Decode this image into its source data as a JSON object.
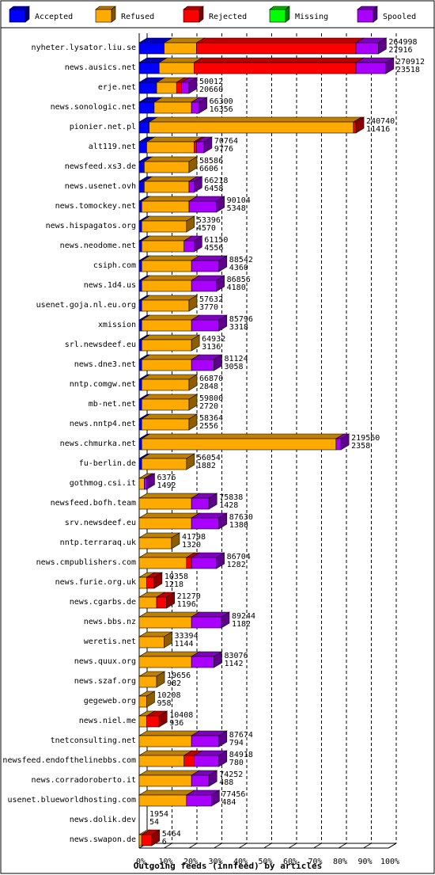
{
  "chart_data": {
    "type": "bar",
    "orientation": "horizontal",
    "stacked": true,
    "xlabel": "Outgoing feeds (innfeed) by articles",
    "xlim": [
      0,
      100
    ],
    "x_ticks": [
      "0%",
      "10%",
      "20%",
      "30%",
      "40%",
      "50%",
      "60%",
      "70%",
      "80%",
      "90%",
      "100%"
    ],
    "grid": true,
    "legend_position": "top",
    "legend": [
      {
        "name": "Accepted",
        "color": "#0000ff"
      },
      {
        "name": "Refused",
        "color": "#ffaa00"
      },
      {
        "name": "Rejected",
        "color": "#ff0000"
      },
      {
        "name": "Missing",
        "color": "#00ff00"
      },
      {
        "name": "Spooled",
        "color": "#aa00ff"
      }
    ],
    "categories": [
      {
        "name": "nyheter.lysator.liu.se",
        "total": "264998",
        "accepted": "27916",
        "pct": [
          10,
          13,
          64,
          0,
          9
        ]
      },
      {
        "name": "news.ausics.net",
        "total": "270912",
        "accepted": "23518",
        "pct": [
          8,
          14,
          65,
          0,
          12
        ]
      },
      {
        "name": "erje.net",
        "total": "50012",
        "accepted": "20660",
        "pct": [
          7,
          8,
          2,
          0,
          3
        ]
      },
      {
        "name": "news.sonologic.net",
        "total": "66300",
        "accepted": "16356",
        "pct": [
          6,
          15,
          0,
          0,
          3
        ]
      },
      {
        "name": "pionier.net.pl",
        "total": "240740",
        "accepted": "11416",
        "pct": [
          4,
          82,
          1,
          0,
          0
        ]
      },
      {
        "name": "alt119.net",
        "total": "70764",
        "accepted": "9776",
        "pct": [
          3,
          19,
          1,
          0,
          3
        ]
      },
      {
        "name": "newsfeed.xs3.de",
        "total": "58586",
        "accepted": "6606",
        "pct": [
          2,
          18,
          0,
          0,
          0
        ]
      },
      {
        "name": "news.usenet.ovh",
        "total": "66218",
        "accepted": "6458",
        "pct": [
          2,
          18,
          0,
          0,
          2
        ]
      },
      {
        "name": "news.tomockey.net",
        "total": "90104",
        "accepted": "5348",
        "pct": [
          1,
          19,
          0,
          0,
          11
        ]
      },
      {
        "name": "news.hispagatos.org",
        "total": "53396",
        "accepted": "4570",
        "pct": [
          1,
          18,
          0,
          0,
          0
        ]
      },
      {
        "name": "news.neodome.net",
        "total": "61150",
        "accepted": "4556",
        "pct": [
          1,
          17,
          0,
          0,
          4
        ]
      },
      {
        "name": "csiph.com",
        "total": "88542",
        "accepted": "4360",
        "pct": [
          1,
          20,
          0,
          0,
          11
        ]
      },
      {
        "name": "news.1d4.us",
        "total": "86856",
        "accepted": "4180",
        "pct": [
          1,
          20,
          0,
          0,
          10
        ]
      },
      {
        "name": "usenet.goja.nl.eu.org",
        "total": "57632",
        "accepted": "3770",
        "pct": [
          1,
          19,
          0,
          0,
          0
        ]
      },
      {
        "name": "xmission",
        "total": "85796",
        "accepted": "3318",
        "pct": [
          1,
          20,
          0,
          0,
          11
        ]
      },
      {
        "name": "srl.newsdeef.eu",
        "total": "64932",
        "accepted": "3136",
        "pct": [
          1,
          20,
          0,
          0,
          0
        ]
      },
      {
        "name": "news.dne3.net",
        "total": "81124",
        "accepted": "3058",
        "pct": [
          1,
          20,
          0,
          0,
          9
        ]
      },
      {
        "name": "nntp.comgw.net",
        "total": "66870",
        "accepted": "2848",
        "pct": [
          1,
          19,
          0,
          0,
          0
        ]
      },
      {
        "name": "mb-net.net",
        "total": "59800",
        "accepted": "2720",
        "pct": [
          1,
          19,
          0,
          0,
          0
        ]
      },
      {
        "name": "news.nntp4.net",
        "total": "58364",
        "accepted": "2556",
        "pct": [
          1,
          19,
          0,
          0,
          0
        ]
      },
      {
        "name": "news.chmurka.net",
        "total": "219560",
        "accepted": "2358",
        "pct": [
          1,
          78,
          0,
          0,
          2
        ]
      },
      {
        "name": "fu-berlin.de",
        "total": "56054",
        "accepted": "1882",
        "pct": [
          1,
          18,
          0,
          0,
          0
        ]
      },
      {
        "name": "gothmog.csi.it",
        "total": "6376",
        "accepted": "1492",
        "pct": [
          0,
          2,
          0,
          0,
          1
        ]
      },
      {
        "name": "newsfeed.bofh.team",
        "total": "75838",
        "accepted": "1428",
        "pct": [
          0,
          21,
          0,
          0,
          7
        ]
      },
      {
        "name": "srv.newsdeef.eu",
        "total": "87630",
        "accepted": "1380",
        "pct": [
          0,
          21,
          0,
          0,
          11
        ]
      },
      {
        "name": "nntp.terraraq.uk",
        "total": "41798",
        "accepted": "1320",
        "pct": [
          0,
          13,
          0,
          0,
          0
        ]
      },
      {
        "name": "news.cmpublishers.com",
        "total": "86704",
        "accepted": "1282",
        "pct": [
          0,
          19,
          2,
          0,
          10
        ]
      },
      {
        "name": "news.furie.org.uk",
        "total": "10358",
        "accepted": "1218",
        "pct": [
          0,
          3,
          3,
          0,
          0
        ]
      },
      {
        "name": "news.cgarbs.de",
        "total": "21270",
        "accepted": "1196",
        "pct": [
          0,
          7,
          4,
          0,
          0
        ]
      },
      {
        "name": "news.bbs.nz",
        "total": "89244",
        "accepted": "1182",
        "pct": [
          0,
          21,
          0,
          0,
          12
        ]
      },
      {
        "name": "weretis.net",
        "total": "33394",
        "accepted": "1144",
        "pct": [
          0,
          10,
          0,
          0,
          0
        ]
      },
      {
        "name": "news.quux.org",
        "total": "83076",
        "accepted": "1142",
        "pct": [
          0,
          21,
          0,
          0,
          9
        ]
      },
      {
        "name": "news.szaf.org",
        "total": "19656",
        "accepted": "982",
        "pct": [
          0,
          7,
          0,
          0,
          0
        ]
      },
      {
        "name": "gegeweb.org",
        "total": "10208",
        "accepted": "958",
        "pct": [
          0,
          3,
          0,
          0,
          0
        ]
      },
      {
        "name": "news.niel.me",
        "total": "10408",
        "accepted": "936",
        "pct": [
          0,
          3,
          5,
          0,
          0
        ]
      },
      {
        "name": "tnetconsulting.net",
        "total": "87674",
        "accepted": "794",
        "pct": [
          0,
          21,
          0,
          0,
          11
        ]
      },
      {
        "name": "newsfeed.endofthelinebbs.com",
        "total": "84918",
        "accepted": "780",
        "pct": [
          0,
          18,
          4,
          0,
          10
        ]
      },
      {
        "name": "news.corradoroberto.it",
        "total": "74252",
        "accepted": "488",
        "pct": [
          0,
          21,
          0,
          0,
          7
        ]
      },
      {
        "name": "usenet.blueworldhosting.com",
        "total": "77456",
        "accepted": "484",
        "pct": [
          0,
          19,
          0,
          0,
          10
        ]
      },
      {
        "name": "news.dolik.dev",
        "total": "1954",
        "accepted": "54",
        "pct": [
          0,
          0,
          0,
          0,
          0
        ]
      },
      {
        "name": "news.swapon.de",
        "total": "5464",
        "accepted": "6",
        "pct": [
          0,
          1,
          4,
          0,
          0
        ]
      }
    ]
  }
}
